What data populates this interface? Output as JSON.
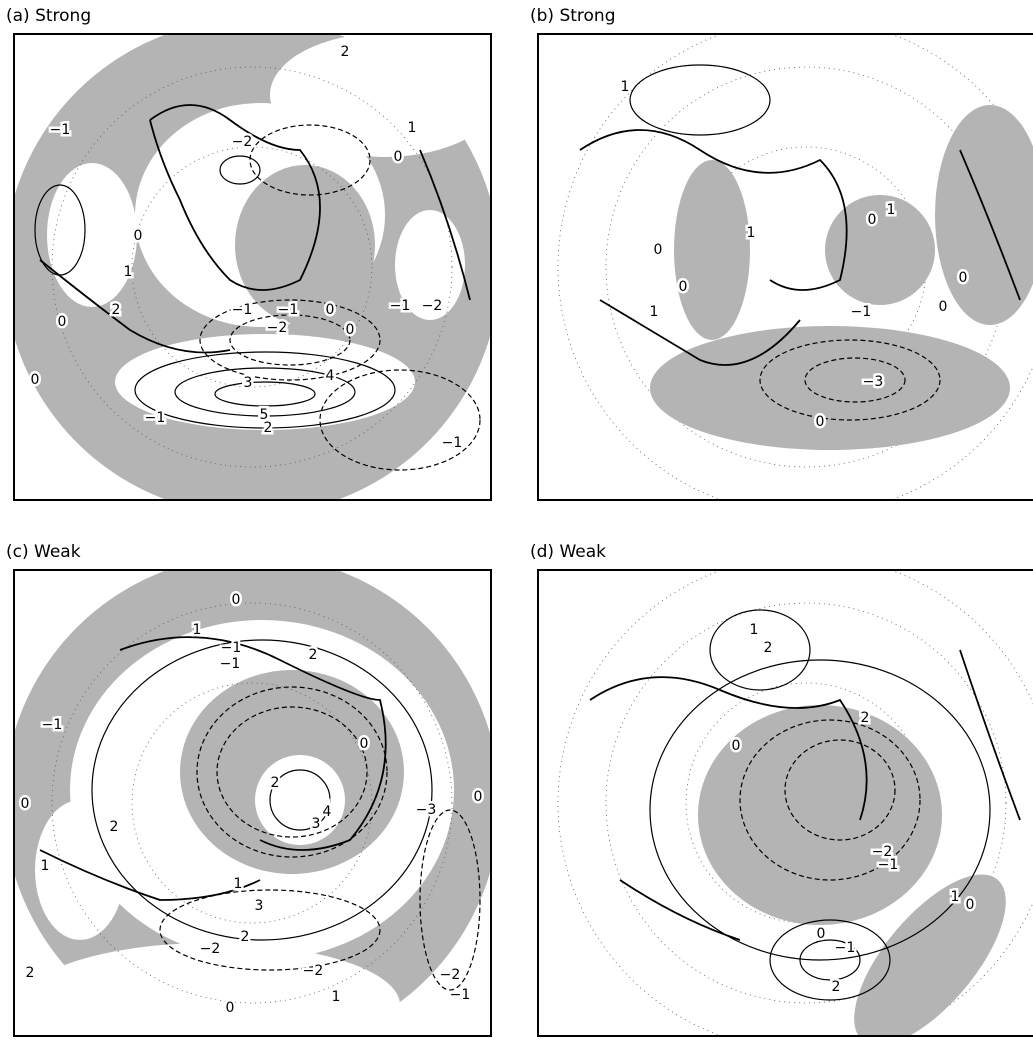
{
  "panels": [
    {
      "title": "(a) Strong",
      "contour_labels": [
        "−1",
        "2",
        "−2",
        "0",
        "1",
        "0",
        "1",
        "2",
        "0",
        "0",
        "−1",
        "−1",
        "−2",
        "0",
        "0",
        "−1",
        "−2",
        "3",
        "4",
        "5",
        "2",
        "−1",
        "−1"
      ]
    },
    {
      "title": "(b) Strong",
      "contour_labels": [
        "1",
        "0",
        "0",
        "1",
        "1",
        "1",
        "0",
        "0",
        "0",
        "−1",
        "−3",
        "0"
      ]
    },
    {
      "title": "(c) Weak",
      "contour_labels": [
        "0",
        "1",
        "−1",
        "−1",
        "2",
        "−1",
        "0",
        "2",
        "0",
        "2",
        "1",
        "4",
        "3",
        "−3",
        "0",
        "1",
        "3",
        "2",
        "−2",
        "−2",
        "−2",
        "−1",
        "1",
        "0",
        "2"
      ]
    },
    {
      "title": "(d) Weak",
      "contour_labels": [
        "1",
        "2",
        "2",
        "0",
        "−2",
        "−1",
        "1",
        "0",
        "0",
        "−1",
        "2"
      ]
    }
  ]
}
